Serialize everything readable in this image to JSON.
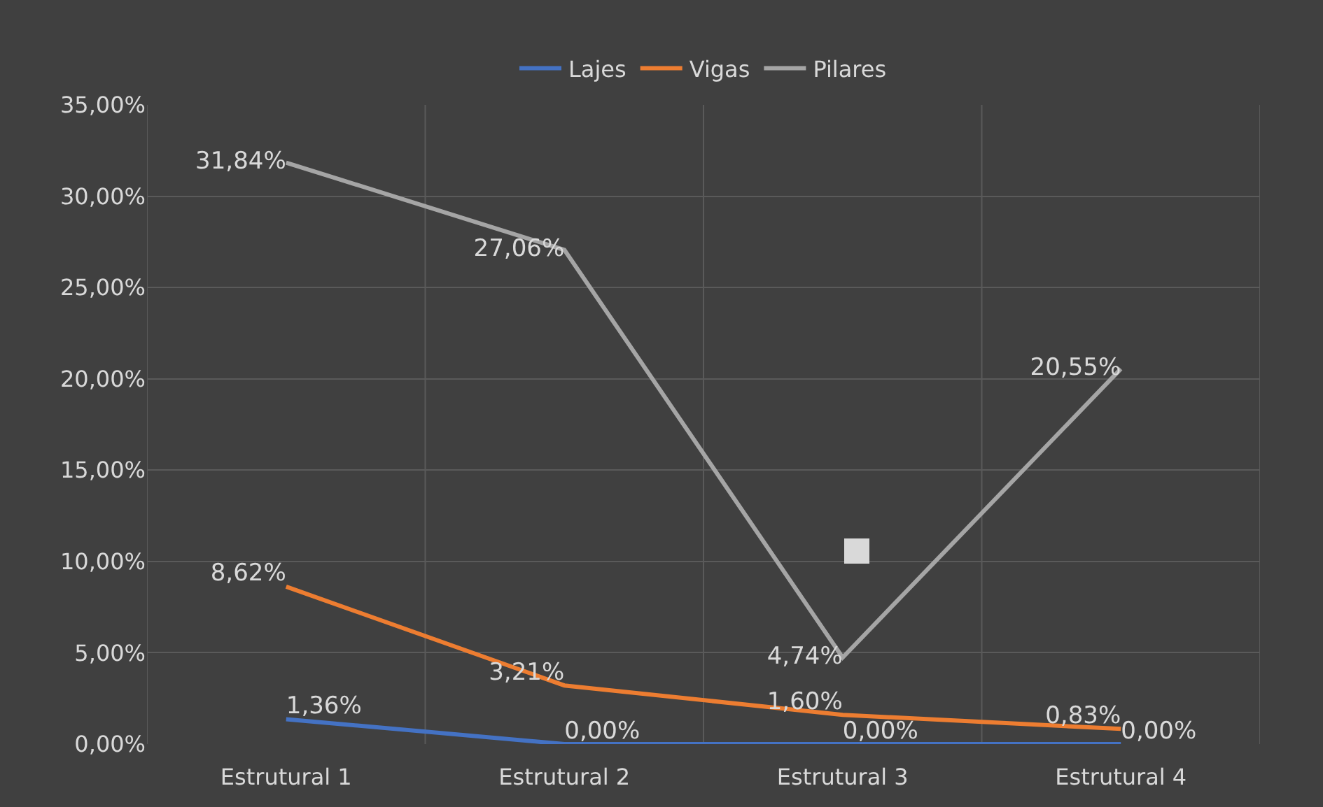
{
  "chart_data": {
    "type": "line",
    "categories": [
      "Estrutural 1",
      "Estrutural 2",
      "Estrutural 3",
      "Estrutural 4"
    ],
    "series": [
      {
        "name": "Lajes",
        "color": "#4472c4",
        "values": [
          1.36,
          0,
          0,
          0
        ],
        "value_labels": [
          "1,36%",
          "0,00%",
          "0,00%",
          "0,00%"
        ]
      },
      {
        "name": "Vigas",
        "color": "#ed7d31",
        "values": [
          8.62,
          3.21,
          1.6,
          0.83
        ],
        "value_labels": [
          "8,62%",
          "3,21%",
          "1,60%",
          "0,83%"
        ]
      },
      {
        "name": "Pilares",
        "color": "#a5a5a5",
        "values": [
          31.84,
          27.06,
          4.74,
          20.55
        ],
        "value_labels": [
          "31,84%",
          "27,06%",
          "4,74%",
          "20,55%"
        ]
      }
    ],
    "ylim": [
      0,
      35
    ],
    "yticks": [
      {
        "value": 0,
        "label": "0,00%"
      },
      {
        "value": 5,
        "label": "5,00%"
      },
      {
        "value": 10,
        "label": "10,00%"
      },
      {
        "value": 15,
        "label": "15,00%"
      },
      {
        "value": 20,
        "label": "20,00%"
      },
      {
        "value": 25,
        "label": "25,00%"
      },
      {
        "value": 30,
        "label": "30,00%"
      },
      {
        "value": 35,
        "label": "35,00%"
      }
    ],
    "grid": true,
    "legend": "top",
    "marker": "none",
    "line_style": "solid"
  }
}
